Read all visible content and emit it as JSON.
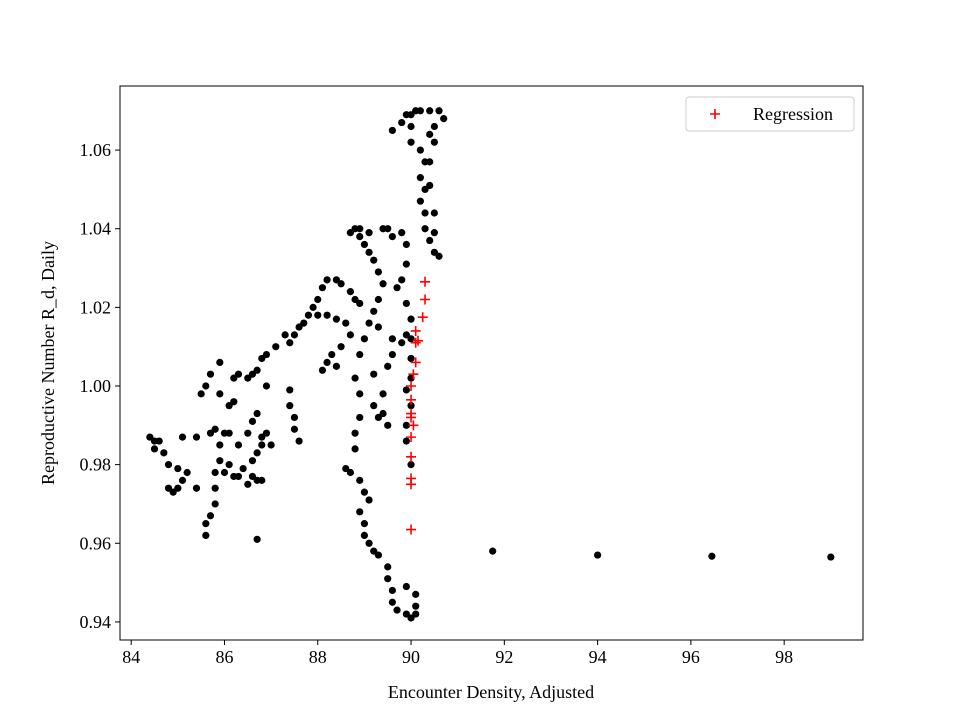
{
  "chart_data": {
    "type": "scatter",
    "xlabel": "Encounter Density, Adjusted",
    "ylabel": "Reproductive Number R_d, Daily",
    "xlim": [
      83.76,
      99.69
    ],
    "ylim": [
      0.9354,
      1.0763
    ],
    "xticks": [
      84,
      86,
      88,
      90,
      92,
      94,
      96,
      98
    ],
    "yticks": [
      0.94,
      0.96,
      0.98,
      {
        "value": 1,
        "label": "1.00"
      },
      1.02,
      1.04,
      1.06
    ],
    "legend": "upper right",
    "series": [
      {
        "color": "#000000",
        "marker": "circle",
        "x": [
          84.4,
          84.5,
          84.6,
          84.7,
          84.8,
          84.8,
          84.9,
          85.0,
          85.1,
          85.2,
          85.0,
          85.1,
          84.5,
          85.4,
          85.4,
          85.5,
          85.6,
          85.7,
          85.6,
          85.6,
          85.7,
          85.8,
          85.8,
          85.8,
          85.9,
          85.9,
          85.7,
          85.8,
          86.0,
          86.1,
          86.0,
          86.1,
          86.2,
          86.3,
          86.4,
          86.5,
          86.6,
          86.7,
          86.8,
          86.6,
          86.7,
          86.8,
          86.2,
          86.1,
          85.9,
          85.9,
          86.2,
          86.3,
          86.5,
          86.6,
          86.7,
          86.8,
          86.9,
          86.7,
          86.3,
          86.5,
          86.6,
          86.7,
          86.8,
          87.0,
          86.9,
          86.9,
          87.1,
          87.3,
          87.4,
          87.5,
          87.6,
          87.4,
          87.4,
          87.5,
          87.5,
          87.6,
          87.7,
          87.8,
          87.9,
          88.0,
          88.1,
          88.2,
          88.4,
          88.5,
          88.7,
          88.8,
          88.9,
          88.0,
          88.2,
          88.4,
          88.6,
          88.7,
          88.5,
          88.3,
          88.2,
          88.1,
          88.4,
          88.7,
          88.8,
          88.9,
          89.0,
          89.1,
          89.2,
          89.3,
          89.4,
          89.3,
          89.2,
          89.1,
          89.0,
          88.9,
          88.8,
          88.9,
          88.9,
          88.8,
          88.8,
          88.6,
          88.7,
          88.9,
          89.0,
          89.1,
          88.9,
          89.0,
          89.0,
          89.1,
          89.2,
          89.3,
          89.5,
          89.5,
          89.6,
          89.6,
          89.7,
          89.9,
          90.0,
          90.1,
          90.1,
          90.1,
          89.9,
          89.4,
          89.2,
          89.5,
          89.6,
          89.8,
          89.9,
          89.6,
          89.3,
          89.2,
          89.3,
          89.5,
          89.4,
          88.9,
          89.1,
          89.4,
          89.5,
          89.6,
          89.8,
          89.9,
          89.9,
          89.8,
          89.7,
          89.9,
          90.0,
          90.0,
          90.0,
          90.0,
          89.9,
          90.0,
          89.9,
          89.9,
          90.0,
          89.6,
          89.8,
          89.9,
          90.0,
          90.0,
          90.0,
          90.2,
          90.3,
          90.2,
          90.3,
          90.2,
          90.3,
          90.3,
          90.4,
          90.5,
          90.6,
          90.5,
          90.5,
          90.4,
          90.4,
          90.5,
          90.5,
          90.7,
          90.6,
          90.4,
          90.2,
          90.1,
          90.4,
          91.75,
          94.0,
          96.45,
          99.0
        ],
        "y": [
          0.987,
          0.984,
          0.986,
          0.983,
          0.98,
          0.974,
          0.973,
          0.974,
          0.976,
          0.978,
          0.979,
          0.987,
          0.986,
          0.974,
          0.987,
          0.998,
          1.0,
          1.003,
          0.965,
          0.962,
          0.967,
          0.97,
          0.974,
          0.978,
          0.981,
          0.985,
          0.988,
          0.989,
          0.988,
          0.988,
          0.978,
          0.98,
          0.977,
          0.977,
          0.979,
          0.975,
          0.977,
          0.976,
          0.976,
          0.981,
          0.983,
          0.985,
          0.996,
          0.995,
          0.998,
          1.006,
          1.002,
          1.003,
          1.002,
          1.003,
          1.004,
          1.007,
          1.008,
          0.961,
          0.985,
          0.988,
          0.991,
          0.993,
          0.987,
          0.985,
          0.988,
          1.0,
          1.01,
          1.013,
          1.011,
          1.013,
          1.015,
          0.999,
          0.995,
          0.992,
          0.989,
          0.986,
          1.016,
          1.018,
          1.02,
          1.022,
          1.025,
          1.027,
          1.027,
          1.026,
          1.024,
          1.022,
          1.021,
          1.018,
          1.018,
          1.017,
          1.016,
          1.013,
          1.01,
          1.008,
          1.006,
          1.004,
          1.005,
          1.039,
          1.04,
          1.038,
          1.036,
          1.034,
          1.032,
          1.029,
          1.026,
          1.022,
          1.019,
          1.016,
          1.012,
          1.008,
          1.002,
          0.998,
          0.992,
          0.988,
          0.984,
          0.979,
          0.978,
          0.976,
          0.973,
          0.971,
          0.968,
          0.965,
          0.962,
          0.96,
          0.958,
          0.957,
          0.954,
          0.951,
          0.948,
          0.945,
          0.943,
          0.942,
          0.941,
          0.942,
          0.944,
          0.947,
          0.949,
          0.998,
          1.003,
          1.005,
          1.008,
          1.011,
          1.013,
          1.012,
          1.015,
          0.995,
          0.992,
          0.99,
          0.993,
          1.04,
          1.039,
          1.04,
          1.04,
          1.038,
          1.039,
          1.036,
          1.031,
          1.027,
          1.025,
          1.021,
          1.017,
          1.012,
          1.007,
          1.002,
          0.999,
          0.995,
          0.99,
          0.986,
          0.98,
          1.065,
          1.067,
          1.069,
          1.069,
          1.066,
          1.062,
          1.06,
          1.057,
          1.053,
          1.05,
          1.047,
          1.044,
          1.04,
          1.037,
          1.034,
          1.033,
          1.039,
          1.044,
          1.051,
          1.057,
          1.062,
          1.066,
          1.068,
          1.07,
          1.07,
          1.07,
          1.07,
          1.064,
          0.958,
          0.957,
          0.9567,
          0.9565
        ]
      },
      {
        "name": "Regression",
        "color": "#ff0000",
        "marker": "plus",
        "x": [
          90.0,
          90.0,
          90.0,
          90.0,
          90.0,
          90.05,
          90.0,
          90.0,
          90.0,
          90.0,
          90.05,
          90.1,
          90.1,
          90.15,
          90.1,
          90.25,
          90.3,
          90.3
        ],
        "y": [
          0.9635,
          0.975,
          0.9765,
          0.982,
          0.987,
          0.99,
          0.992,
          0.993,
          0.9965,
          1.0,
          1.003,
          1.006,
          1.011,
          1.0115,
          1.014,
          1.0175,
          1.022,
          1.0265
        ]
      }
    ]
  }
}
